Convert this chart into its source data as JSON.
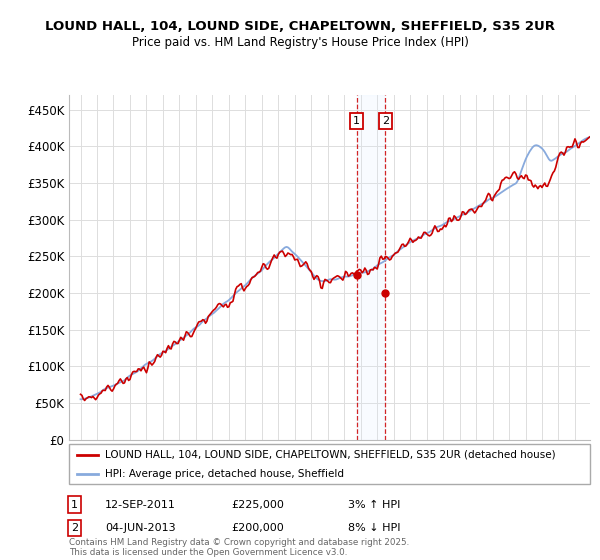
{
  "title_line1": "LOUND HALL, 104, LOUND SIDE, CHAPELTOWN, SHEFFIELD, S35 2UR",
  "title_line2": "Price paid vs. HM Land Registry's House Price Index (HPI)",
  "ylim": [
    0,
    470000
  ],
  "yticks": [
    0,
    50000,
    100000,
    150000,
    200000,
    250000,
    300000,
    350000,
    400000,
    450000
  ],
  "ytick_labels": [
    "£0",
    "£50K",
    "£100K",
    "£150K",
    "£200K",
    "£250K",
    "£300K",
    "£350K",
    "£400K",
    "£450K"
  ],
  "sale1_label": "1",
  "sale2_label": "2",
  "legend_property": "LOUND HALL, 104, LOUND SIDE, CHAPELTOWN, SHEFFIELD, S35 2UR (detached house)",
  "legend_hpi": "HPI: Average price, detached house, Sheffield",
  "transaction1": "12-SEP-2011",
  "transaction1_price": "£225,000",
  "transaction1_pct": "3% ↑ HPI",
  "transaction2": "04-JUN-2013",
  "transaction2_price": "£200,000",
  "transaction2_pct": "8% ↓ HPI",
  "footnote": "Contains HM Land Registry data © Crown copyright and database right 2025.\nThis data is licensed under the Open Government Licence v3.0.",
  "property_line_color": "#cc0000",
  "hpi_line_color": "#88aadd",
  "background_color": "#ffffff",
  "grid_color": "#dddddd",
  "shade_color": "#ddeeff"
}
